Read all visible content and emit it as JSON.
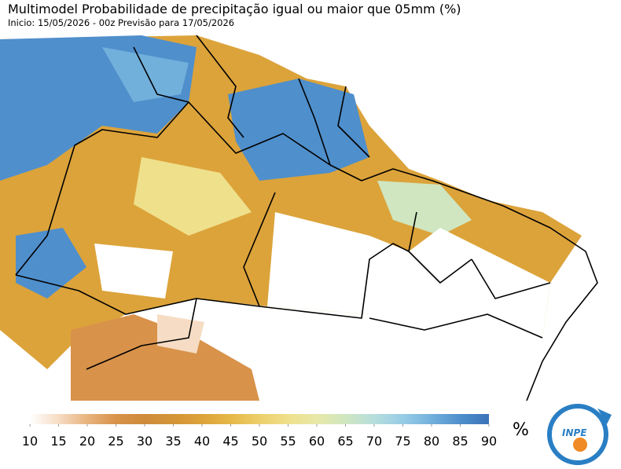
{
  "header": {
    "title": "Multimodel Probabilidade de precipitação igual ou maior que 05mm (%)",
    "subtitle": "Inicio: 15/05/2026 - 00z  Previsão para 17/05/2026"
  },
  "colorbar": {
    "ticks": [
      10,
      15,
      20,
      25,
      30,
      35,
      40,
      45,
      50,
      55,
      60,
      65,
      70,
      75,
      80,
      85,
      90
    ],
    "colors": [
      "#ffffff",
      "#f6dcc4",
      "#e8b47e",
      "#d8924a",
      "#cf8a3a",
      "#d39538",
      "#dca33a",
      "#e6b848",
      "#eccf6a",
      "#efe08c",
      "#e8e8a8",
      "#cfe6c0",
      "#b6dedc",
      "#98cce6",
      "#72b0dc",
      "#4f8fcc",
      "#3a72b8"
    ],
    "unit": "%"
  },
  "logo": {
    "text": "INPE"
  }
}
